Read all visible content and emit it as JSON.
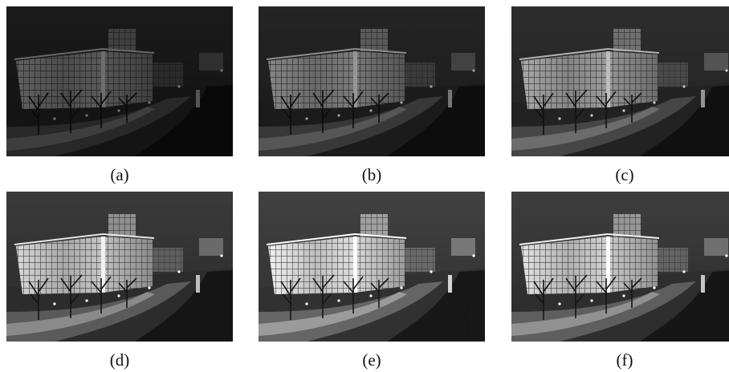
{
  "figure": {
    "panels": [
      {
        "label": "(a)",
        "brightness": 0.45
      },
      {
        "label": "(b)",
        "brightness": 0.62
      },
      {
        "label": "(c)",
        "brightness": 0.78
      },
      {
        "label": "(d)",
        "brightness": 1.0
      },
      {
        "label": "(e)",
        "brightness": 1.12
      },
      {
        "label": "(f)",
        "brightness": 1.05
      }
    ]
  }
}
